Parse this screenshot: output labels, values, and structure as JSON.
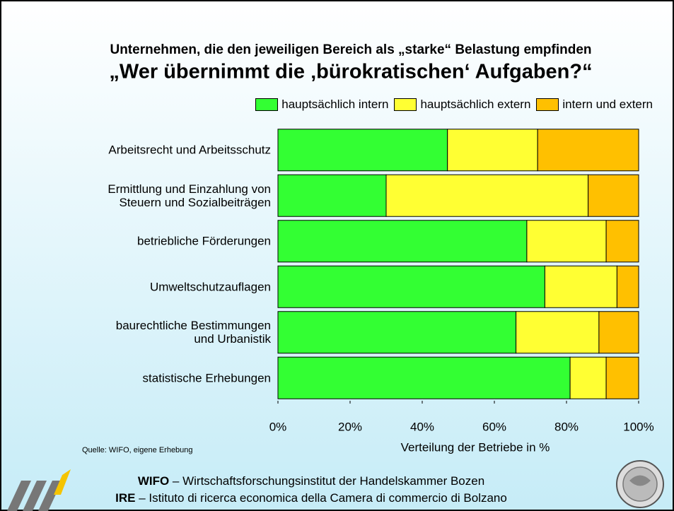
{
  "chart_data": {
    "type": "stacked_bar_horizontal",
    "title": "Unternehmen, die den jeweiligen Bereich als „starke“ Belastung empfinden",
    "subtitle": "„Wer übernimmt die ‚bürokratischen‘ Aufgaben?“",
    "categories": [
      "Arbeitsrecht und Arbeitsschutz",
      "Ermittlung und Einzahlung von\nSteuern und Sozialbeiträgen",
      "betriebliche Förderungen",
      "Umweltschutzauflagen",
      "baurechtliche Bestimmungen\nund Urbanistik",
      "statistische Erhebungen"
    ],
    "series": [
      {
        "name": "hauptsächlich intern",
        "color": "#33ff33",
        "values": [
          47,
          30,
          69,
          74,
          66,
          81
        ]
      },
      {
        "name": "hauptsächlich extern",
        "color": "#ffff33",
        "values": [
          25,
          56,
          22,
          20,
          23,
          10
        ]
      },
      {
        "name": "intern und extern",
        "color": "#ffc000",
        "values": [
          28,
          14,
          9,
          6,
          11,
          9
        ]
      }
    ],
    "xlim": [
      0,
      100
    ],
    "xticks": [
      {
        "value": 0,
        "label": "0%"
      },
      {
        "value": 20,
        "label": "20%"
      },
      {
        "value": 40,
        "label": "40%"
      },
      {
        "value": 60,
        "label": "60%"
      },
      {
        "value": 80,
        "label": "80%"
      },
      {
        "value": 100,
        "label": "100%"
      }
    ],
    "x_label": "Verteilung der Betriebe in %",
    "legend": "top-right",
    "grid": false
  },
  "source": "Quelle: WIFO, eigene Erhebung",
  "footer": {
    "lines": [
      {
        "bold": "WIFO",
        "text": " – Wirtschaftsforschungsinstitut der Handelskammer Bozen"
      },
      {
        "bold": "IRE",
        "text": " – Istituto di ricerca economica della Camera di commercio di Bolzano"
      }
    ]
  }
}
